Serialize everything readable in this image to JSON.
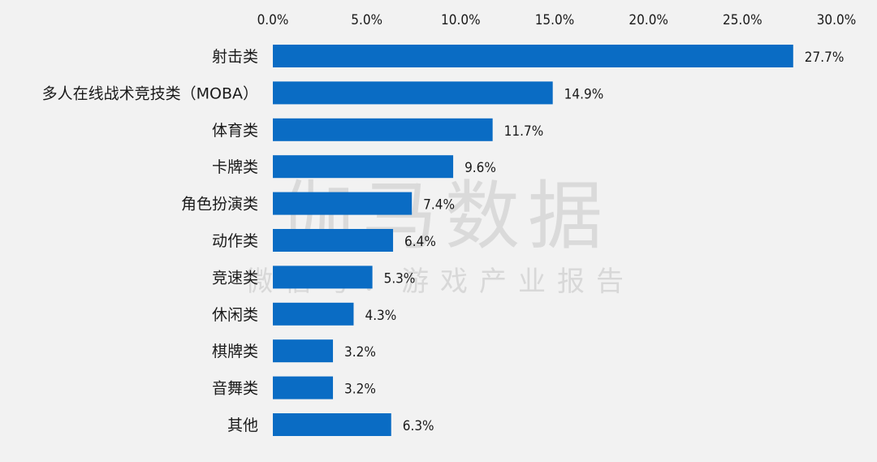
{
  "watermark": {
    "main": "伽马数据",
    "sub": "微信号：游戏产业报告"
  },
  "chart_data": {
    "type": "bar",
    "orientation": "horizontal",
    "title": "",
    "xlabel": "",
    "ylabel": "",
    "xlim": [
      0,
      30
    ],
    "xticks": [
      "0.0%",
      "5.0%",
      "10.0%",
      "15.0%",
      "20.0%",
      "25.0%",
      "30.0%"
    ],
    "xtick_values": [
      0,
      5,
      10,
      15,
      20,
      25,
      30
    ],
    "axis_position": "top",
    "grid": false,
    "bar_color": "#0a6cc4",
    "categories": [
      "射击类",
      "多人在线战术竞技类（MOBA）",
      "体育类",
      "卡牌类",
      "角色扮演类",
      "动作类",
      "竞速类",
      "休闲类",
      "棋牌类",
      "音舞类",
      "其他"
    ],
    "values": [
      27.7,
      14.9,
      11.7,
      9.6,
      7.4,
      6.4,
      5.3,
      4.3,
      3.2,
      3.2,
      6.3
    ],
    "value_labels": [
      "27.7%",
      "14.9%",
      "11.7%",
      "9.6%",
      "7.4%",
      "6.4%",
      "5.3%",
      "4.3%",
      "3.2%",
      "3.2%",
      "6.3%"
    ]
  }
}
